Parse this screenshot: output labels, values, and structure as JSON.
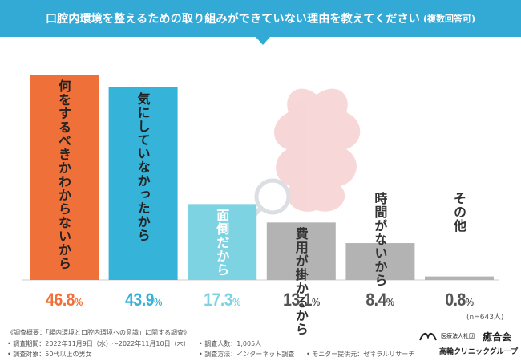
{
  "header": {
    "title": "口腔内環境を整えるための取り組みができていない理由を教えてください",
    "note": "(複数回答可)"
  },
  "chart_data": {
    "type": "bar",
    "title": "口腔内環境を整えるための取り組みができていない理由を教えてください",
    "categories": [
      "何をするべきかわからないから",
      "気にしていなかったから",
      "面倒だから",
      "費用が掛かるから",
      "時間がないから",
      "その他"
    ],
    "values": [
      46.8,
      43.9,
      17.3,
      13.1,
      8.4,
      0.8
    ],
    "value_labels": [
      "46.8",
      "43.9",
      "17.3",
      "13.1",
      "8.4",
      "0.8"
    ],
    "unit": "%",
    "ylim": [
      0,
      50
    ],
    "grid": false,
    "colors": [
      "#f07039",
      "#35b3d8",
      "#7ed3e2",
      "#b3b3b3",
      "#b3b3b3",
      "#b3b3b3"
    ],
    "label_colors": [
      "#222222",
      "#222222",
      "#ffffff",
      "#333333",
      "#333333",
      "#333333"
    ],
    "value_colors": [
      "#f07039",
      "#35b3d8",
      "#7ed3e2",
      "#555555",
      "#555555",
      "#555555"
    ]
  },
  "sample_note": "(n=643人)",
  "footer": {
    "survey_outline": "《調査概要：「腸内環境と口腔内環境への意識」に関する調査》",
    "period": "• 調査期間：2022年11月9日（水）〜2022年11月10日（木）",
    "target": "• 調査対象：50代以上の男女",
    "respondents": "• 調査人数：1,005人",
    "method": "• 調査方法：インターネット調査",
    "provider": "• モニター提供元：ゼネラルリサーチ"
  },
  "logo": {
    "corp_type": "医療法人社団",
    "org_name": "癒合会",
    "clinic": "高輪クリニックグループ"
  }
}
